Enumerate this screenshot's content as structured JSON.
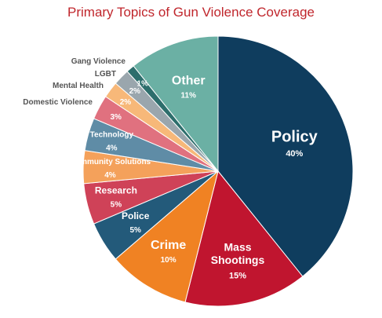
{
  "chart_data": {
    "type": "pie",
    "title": "Primary Topics of Gun Violence Coverage",
    "slices": [
      {
        "label": "Policy",
        "value": 40,
        "pct": "40%",
        "color": "#0f3d5e"
      },
      {
        "label": "Mass Shootings",
        "value": 15,
        "pct": "15%",
        "color": "#c0152f"
      },
      {
        "label": "Crime",
        "value": 10,
        "pct": "10%",
        "color": "#f08223"
      },
      {
        "label": "Police",
        "value": 5,
        "pct": "5%",
        "color": "#235a7a"
      },
      {
        "label": "Research",
        "value": 5,
        "pct": "5%",
        "color": "#cf4258"
      },
      {
        "label": "Community Solutions",
        "value": 4,
        "pct": "4%",
        "color": "#f4a15b"
      },
      {
        "label": "Technology",
        "value": 4,
        "pct": "4%",
        "color": "#5f8ca6"
      },
      {
        "label": "Domestic Violence",
        "value": 3,
        "pct": "3%",
        "color": "#e0717f"
      },
      {
        "label": "Mental Health",
        "value": 2,
        "pct": "2%",
        "color": "#f7b879"
      },
      {
        "label": "LGBT",
        "value": 2,
        "pct": "2%",
        "color": "#9aa6ad"
      },
      {
        "label": "Gang Violence",
        "value": 1,
        "pct": "1%",
        "color": "#2d6e6c"
      },
      {
        "label": "Other",
        "value": 11,
        "pct": "11%",
        "color": "#6bb0a4"
      }
    ]
  }
}
